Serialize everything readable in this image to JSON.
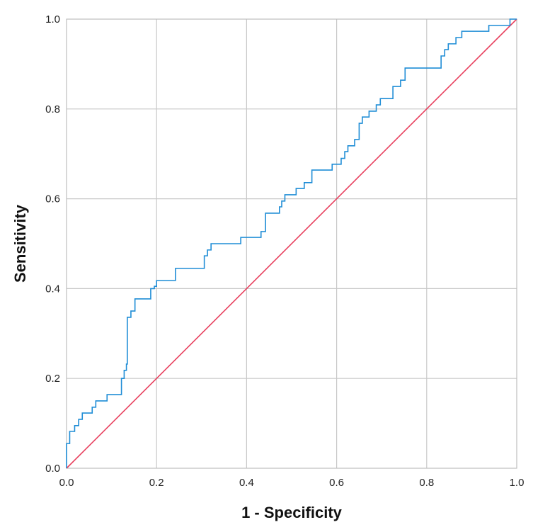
{
  "chart_data": {
    "type": "line",
    "title": "",
    "xlabel": "1 - Specificity",
    "ylabel": "Sensitivity",
    "xlim": [
      0,
      1
    ],
    "ylim": [
      0,
      1
    ],
    "x_ticks": [
      "0.0",
      "0.2",
      "0.4",
      "0.6",
      "0.8",
      "1.0"
    ],
    "y_ticks": [
      "0.0",
      "0.2",
      "0.4",
      "0.6",
      "0.8",
      "1.0"
    ],
    "grid": true,
    "legend": "none",
    "series": [
      {
        "style": "step",
        "color": "#1f8dd6",
        "points": [
          [
            0.0,
            0.0
          ],
          [
            0.0,
            0.055
          ],
          [
            0.007,
            0.055
          ],
          [
            0.007,
            0.082
          ],
          [
            0.018,
            0.082
          ],
          [
            0.018,
            0.095
          ],
          [
            0.027,
            0.095
          ],
          [
            0.027,
            0.109
          ],
          [
            0.035,
            0.109
          ],
          [
            0.035,
            0.123
          ],
          [
            0.057,
            0.123
          ],
          [
            0.057,
            0.136
          ],
          [
            0.065,
            0.136
          ],
          [
            0.065,
            0.15
          ],
          [
            0.09,
            0.15
          ],
          [
            0.09,
            0.164
          ],
          [
            0.122,
            0.164
          ],
          [
            0.122,
            0.2
          ],
          [
            0.128,
            0.2
          ],
          [
            0.128,
            0.218
          ],
          [
            0.133,
            0.218
          ],
          [
            0.133,
            0.232
          ],
          [
            0.135,
            0.232
          ],
          [
            0.135,
            0.336
          ],
          [
            0.143,
            0.336
          ],
          [
            0.143,
            0.35
          ],
          [
            0.152,
            0.35
          ],
          [
            0.152,
            0.377
          ],
          [
            0.187,
            0.377
          ],
          [
            0.187,
            0.4
          ],
          [
            0.195,
            0.4
          ],
          [
            0.195,
            0.405
          ],
          [
            0.2,
            0.405
          ],
          [
            0.2,
            0.418
          ],
          [
            0.242,
            0.418
          ],
          [
            0.242,
            0.445
          ],
          [
            0.306,
            0.445
          ],
          [
            0.306,
            0.473
          ],
          [
            0.313,
            0.473
          ],
          [
            0.313,
            0.486
          ],
          [
            0.321,
            0.486
          ],
          [
            0.321,
            0.5
          ],
          [
            0.387,
            0.5
          ],
          [
            0.387,
            0.514
          ],
          [
            0.432,
            0.514
          ],
          [
            0.432,
            0.527
          ],
          [
            0.442,
            0.527
          ],
          [
            0.442,
            0.568
          ],
          [
            0.473,
            0.568
          ],
          [
            0.473,
            0.582
          ],
          [
            0.478,
            0.582
          ],
          [
            0.478,
            0.595
          ],
          [
            0.485,
            0.595
          ],
          [
            0.485,
            0.609
          ],
          [
            0.51,
            0.609
          ],
          [
            0.51,
            0.623
          ],
          [
            0.528,
            0.623
          ],
          [
            0.528,
            0.636
          ],
          [
            0.545,
            0.636
          ],
          [
            0.545,
            0.664
          ],
          [
            0.59,
            0.664
          ],
          [
            0.59,
            0.677
          ],
          [
            0.61,
            0.677
          ],
          [
            0.61,
            0.69
          ],
          [
            0.618,
            0.69
          ],
          [
            0.618,
            0.705
          ],
          [
            0.625,
            0.705
          ],
          [
            0.625,
            0.718
          ],
          [
            0.64,
            0.718
          ],
          [
            0.64,
            0.732
          ],
          [
            0.65,
            0.732
          ],
          [
            0.65,
            0.768
          ],
          [
            0.657,
            0.768
          ],
          [
            0.657,
            0.782
          ],
          [
            0.672,
            0.782
          ],
          [
            0.672,
            0.795
          ],
          [
            0.688,
            0.795
          ],
          [
            0.688,
            0.809
          ],
          [
            0.697,
            0.809
          ],
          [
            0.697,
            0.823
          ],
          [
            0.725,
            0.823
          ],
          [
            0.725,
            0.85
          ],
          [
            0.742,
            0.85
          ],
          [
            0.742,
            0.864
          ],
          [
            0.752,
            0.864
          ],
          [
            0.752,
            0.891
          ],
          [
            0.832,
            0.891
          ],
          [
            0.832,
            0.918
          ],
          [
            0.84,
            0.918
          ],
          [
            0.84,
            0.932
          ],
          [
            0.848,
            0.932
          ],
          [
            0.848,
            0.945
          ],
          [
            0.865,
            0.945
          ],
          [
            0.865,
            0.959
          ],
          [
            0.878,
            0.959
          ],
          [
            0.878,
            0.973
          ],
          [
            0.938,
            0.973
          ],
          [
            0.938,
            0.986
          ],
          [
            0.985,
            0.986
          ],
          [
            0.985,
            1.0
          ],
          [
            1.0,
            1.0
          ]
        ]
      },
      {
        "style": "line",
        "color": "#e8415f",
        "points": [
          [
            0,
            0
          ],
          [
            1,
            1
          ]
        ]
      }
    ]
  }
}
